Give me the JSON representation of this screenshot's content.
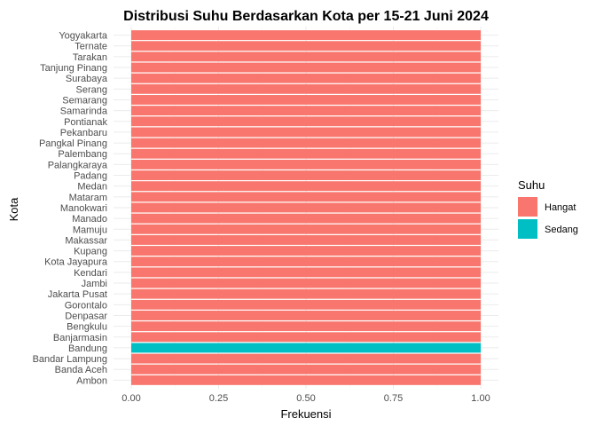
{
  "chart_data": {
    "type": "bar",
    "orientation": "horizontal",
    "stacked": true,
    "title": "Distribusi Suhu Berdasarkan Kota per 15-21 Juni 2024",
    "xlabel": "Frekuensi",
    "ylabel": "Kota",
    "xlim": [
      0,
      1
    ],
    "xticks": [
      "0.00",
      "0.25",
      "0.50",
      "0.75",
      "1.00"
    ],
    "grid": true,
    "legend_position": "right",
    "legend_title": "Suhu",
    "categories": [
      "Ambon",
      "Banda Aceh",
      "Bandar Lampung",
      "Bandung",
      "Banjarmasin",
      "Bengkulu",
      "Denpasar",
      "Gorontalo",
      "Jakarta Pusat",
      "Jambi",
      "Kendari",
      "Kota Jayapura",
      "Kupang",
      "Makassar",
      "Mamuju",
      "Manado",
      "Manokwari",
      "Mataram",
      "Medan",
      "Padang",
      "Palangkaraya",
      "Palembang",
      "Pangkal Pinang",
      "Pekanbaru",
      "Pontianak",
      "Samarinda",
      "Semarang",
      "Serang",
      "Surabaya",
      "Tanjung Pinang",
      "Tarakan",
      "Ternate",
      "Yogyakarta"
    ],
    "series": [
      {
        "name": "Hangat",
        "color": "#F8766D",
        "values": [
          1,
          1,
          1,
          0,
          1,
          1,
          1,
          1,
          1,
          1,
          1,
          1,
          1,
          1,
          1,
          1,
          1,
          1,
          1,
          1,
          1,
          1,
          1,
          1,
          1,
          1,
          1,
          1,
          1,
          1,
          1,
          1,
          1
        ]
      },
      {
        "name": "Sedang",
        "color": "#00BFC4",
        "values": [
          0,
          0,
          0,
          1,
          0,
          0,
          0,
          0,
          0,
          0,
          0,
          0,
          0,
          0,
          0,
          0,
          0,
          0,
          0,
          0,
          0,
          0,
          0,
          0,
          0,
          0,
          0,
          0,
          0,
          0,
          0,
          0,
          0
        ]
      }
    ]
  }
}
